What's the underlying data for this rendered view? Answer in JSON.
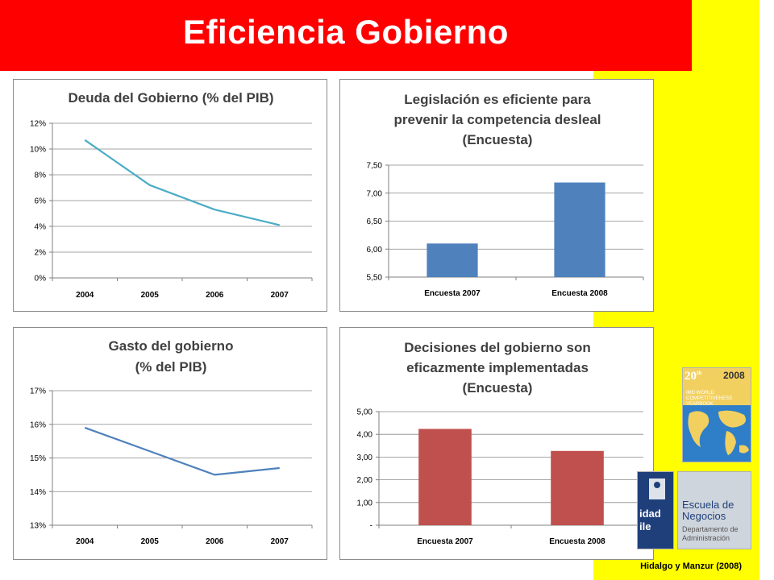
{
  "title": "Eficiencia Gobierno",
  "credit": "Hidalgo y Manzur (2008)",
  "book": {
    "edition": "20",
    "edition_suffix": "th",
    "year": "2008",
    "name": "IMD WORLD COMPETITIVENESS YEARBOOK"
  },
  "logos": {
    "uchile": "idad\nile",
    "escuela": "Escuela de\nNegocios",
    "departamento": "Departamento de\nAdministración"
  },
  "colors": {
    "banner": "#ff0000",
    "yellow": "#ffff00",
    "line1": "#4bacc6",
    "line2": "#4f81bd",
    "bar_blue": "#4f81bd",
    "bar_red": "#c0504d"
  },
  "chart_data": [
    {
      "type": "line",
      "title": "Deuda del Gobierno (% del PIB)",
      "x": [
        "2004",
        "2005",
        "2006",
        "2007"
      ],
      "series": [
        {
          "values": [
            10.7,
            7.2,
            5.3,
            4.1
          ]
        }
      ],
      "ylim": [
        0,
        12
      ],
      "yticks": [
        "0%",
        "2%",
        "4%",
        "6%",
        "8%",
        "10%",
        "12%"
      ],
      "grid": true
    },
    {
      "type": "bar",
      "title": "Legislación es eficiente para prevenir la competencia desleal (Encuesta)",
      "categories": [
        "Encuesta 2007",
        "Encuesta 2008"
      ],
      "values": [
        6.1,
        7.19
      ],
      "ylim": [
        5.5,
        7.5
      ],
      "yticks": [
        "5,50",
        "6,00",
        "6,50",
        "7,00",
        "7,50"
      ],
      "grid": true
    },
    {
      "type": "line",
      "title": "Gasto del gobierno (% del PIB)",
      "x": [
        "2004",
        "2005",
        "2006",
        "2007"
      ],
      "series": [
        {
          "values": [
            15.9,
            15.2,
            14.5,
            14.7
          ]
        }
      ],
      "ylim": [
        13,
        17
      ],
      "yticks": [
        "13%",
        "14%",
        "15%",
        "16%",
        "17%"
      ],
      "grid": true
    },
    {
      "type": "bar",
      "title": "Decisiones del gobierno son eficazmente implementadas (Encuesta)",
      "categories": [
        "Encuesta 2007",
        "Encuesta 2008"
      ],
      "values": [
        4.24,
        3.27
      ],
      "ylim": [
        0,
        5
      ],
      "yticks": [
        "-",
        "1,00",
        "2,00",
        "3,00",
        "4,00",
        "5,00"
      ],
      "grid": true
    }
  ]
}
